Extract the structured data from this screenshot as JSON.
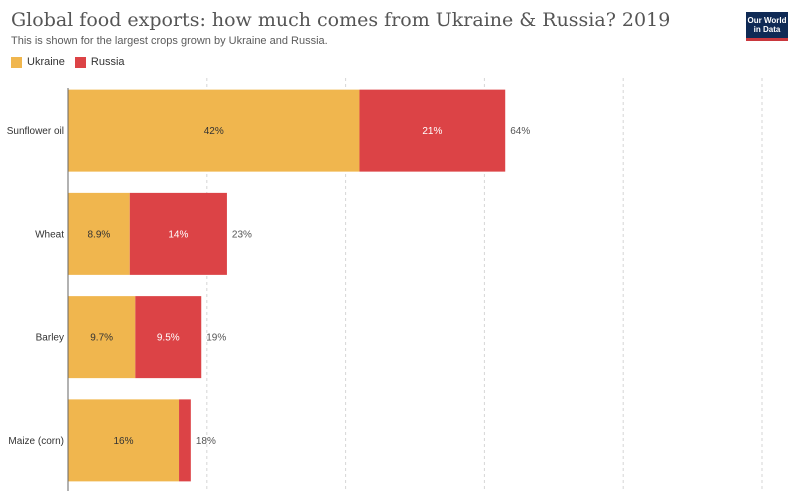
{
  "header": {
    "title": "Global food exports: how much comes from Ukraine & Russia? 2019",
    "subtitle": "This is shown for the largest crops grown by Ukraine and Russia."
  },
  "logo": {
    "line1": "Our World",
    "line2": "in Data"
  },
  "colors": {
    "ukraine": "#f0b64e",
    "russia": "#dc4346"
  },
  "chart_data": {
    "type": "bar",
    "orientation": "horizontal",
    "stacked": true,
    "categories": [
      "Sunflower oil",
      "Wheat",
      "Barley",
      "Maize (corn)"
    ],
    "series": [
      {
        "name": "Ukraine",
        "values": [
          42,
          8.9,
          9.7,
          16
        ],
        "labels": [
          "42%",
          "8.9%",
          "9.7%",
          "16%"
        ]
      },
      {
        "name": "Russia",
        "values": [
          21,
          14,
          9.5,
          1.7
        ],
        "labels": [
          "21%",
          "14%",
          "9.5%",
          ""
        ]
      }
    ],
    "totals": [
      "64%",
      "23%",
      "19%",
      "18%"
    ],
    "xlim": [
      0,
      100
    ],
    "xunit": "%",
    "grid": true,
    "legend_position": "top-left"
  }
}
